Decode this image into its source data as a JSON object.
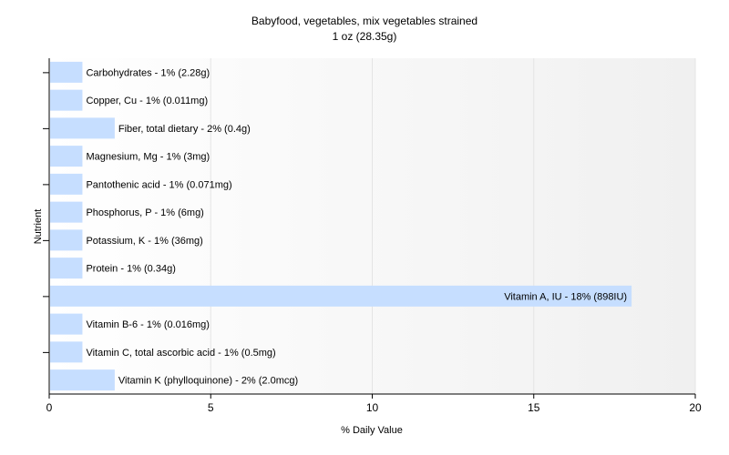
{
  "chart_data": {
    "type": "bar",
    "orientation": "horizontal",
    "title": "Babyfood, vegetables, mix vegetables strained",
    "subtitle": "1 oz (28.35g)",
    "xlabel": "% Daily Value",
    "ylabel": "Nutrient",
    "xlim": [
      0,
      20
    ],
    "xticks": [
      0,
      5,
      10,
      15,
      20
    ],
    "grid": true,
    "bar_color": "#c6deff",
    "categories": [
      "Carbohydrates",
      "Copper, Cu",
      "Fiber, total dietary",
      "Magnesium, Mg",
      "Pantothenic acid",
      "Phosphorus, P",
      "Potassium, K",
      "Protein",
      "Vitamin A, IU",
      "Vitamin B-6",
      "Vitamin C, total ascorbic acid",
      "Vitamin K (phylloquinone)"
    ],
    "values": [
      1,
      1,
      2,
      1,
      1,
      1,
      1,
      1,
      18,
      1,
      1,
      2
    ],
    "labels": [
      "Carbohydrates - 1% (2.28g)",
      "Copper, Cu - 1% (0.011mg)",
      "Fiber, total dietary - 2% (0.4g)",
      "Magnesium, Mg - 1% (3mg)",
      "Pantothenic acid - 1% (0.071mg)",
      "Phosphorus, P - 1% (6mg)",
      "Potassium, K - 1% (36mg)",
      "Protein - 1% (0.34g)",
      "Vitamin A, IU - 18% (898IU)",
      "Vitamin B-6 - 1% (0.016mg)",
      "Vitamin C, total ascorbic acid - 1% (0.5mg)",
      "Vitamin K (phylloquinone) - 2% (2.0mcg)"
    ]
  }
}
